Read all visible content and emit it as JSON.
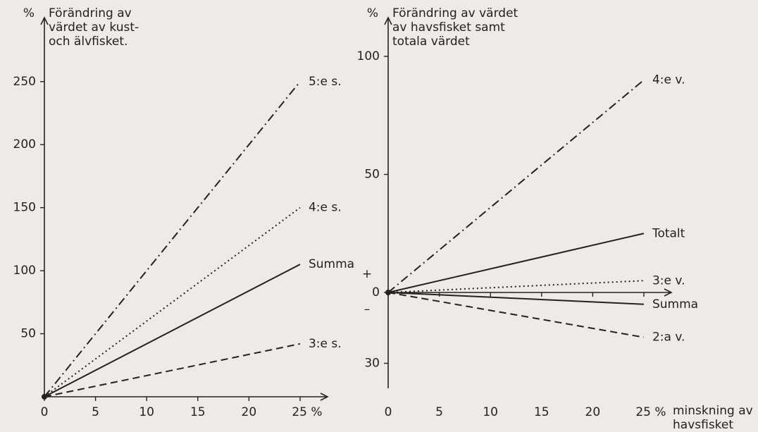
{
  "chart_data": [
    {
      "type": "line",
      "title": "Förändring av\nvärdet av kust-\noch älvfisket.",
      "y_unit": "%",
      "x": [
        0,
        25
      ],
      "xlim": [
        0,
        27
      ],
      "ylim": [
        0,
        270
      ],
      "xticks": [
        0,
        5,
        10,
        15,
        20,
        {
          "value": 25,
          "label": "25 %"
        }
      ],
      "yticks": [
        50,
        100,
        150,
        200,
        250
      ],
      "series": [
        {
          "name": "5:e s.",
          "color": "#222222",
          "dash": "dashdot",
          "values": [
            0,
            250
          ]
        },
        {
          "name": "4:e s.",
          "color": "#222222",
          "dash": "dotted",
          "values": [
            0,
            150
          ]
        },
        {
          "name": "Summa",
          "color": "#222222",
          "dash": "solid",
          "values": [
            0,
            105
          ]
        },
        {
          "name": "3:e s.",
          "color": "#222222",
          "dash": "dashed",
          "values": [
            0,
            42
          ]
        }
      ]
    },
    {
      "type": "line",
      "title": "Förändring av värdet\nav havsfisket samt\ntotala värdet",
      "y_unit": "%",
      "x_label": "minskning av\nhavsfisket",
      "plus_sign": "+",
      "minus_sign": "–",
      "x": [
        0,
        25
      ],
      "xlim": [
        0,
        27
      ],
      "ylim": [
        -42,
        110
      ],
      "xticks": [
        0,
        5,
        10,
        15,
        20,
        {
          "value": 25,
          "label": "25 %"
        }
      ],
      "yticks": [
        {
          "value": -30,
          "label": "30"
        },
        0,
        50,
        100
      ],
      "series": [
        {
          "name": "4:e v.",
          "color": "#222222",
          "dash": "dashdot",
          "values": [
            0,
            90
          ]
        },
        {
          "name": "Totalt",
          "color": "#222222",
          "dash": "solid",
          "values": [
            0,
            25
          ]
        },
        {
          "name": "3:e v.",
          "color": "#222222",
          "dash": "dotted",
          "values": [
            0,
            5
          ]
        },
        {
          "name": "Summa",
          "color": "#222222",
          "dash": "solid",
          "values": [
            0,
            -5
          ]
        },
        {
          "name": "2:a v.",
          "color": "#222222",
          "dash": "dashed",
          "values": [
            0,
            -19
          ]
        }
      ]
    }
  ]
}
